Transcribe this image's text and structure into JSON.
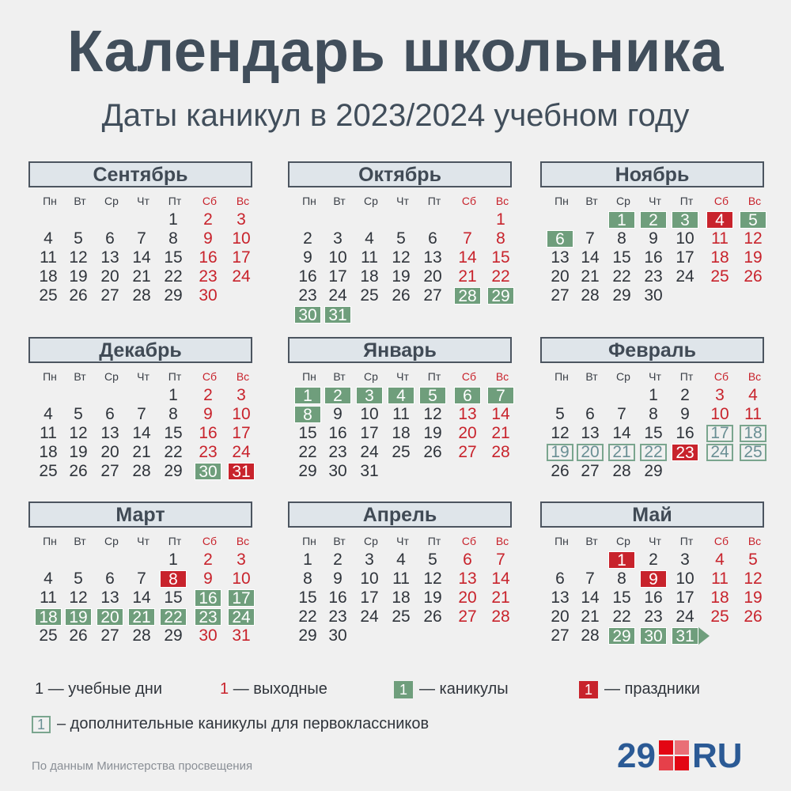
{
  "title": "Календарь школьника",
  "subtitle": "Даты каникул в 2023/2024 учебном году",
  "weekdays": [
    "Пн",
    "Вт",
    "Ср",
    "Чт",
    "Пт",
    "Сб",
    "Вс"
  ],
  "months": [
    {
      "name": "Сентябрь",
      "start": 4,
      "days": 30,
      "vac": [],
      "hol": [],
      "first": []
    },
    {
      "name": "Октябрь",
      "start": 6,
      "days": 31,
      "vac": [
        28,
        29,
        30,
        31
      ],
      "hol": [],
      "first": []
    },
    {
      "name": "Ноябрь",
      "start": 2,
      "days": 30,
      "vac": [
        1,
        2,
        3,
        5,
        6
      ],
      "hol": [
        4
      ],
      "first": []
    },
    {
      "name": "Декабрь",
      "start": 4,
      "days": 31,
      "vac": [
        30
      ],
      "hol": [
        31
      ],
      "first": []
    },
    {
      "name": "Январь",
      "start": 0,
      "days": 31,
      "vac": [
        1,
        2,
        3,
        4,
        5,
        6,
        7,
        8
      ],
      "hol": [],
      "first": []
    },
    {
      "name": "Февраль",
      "start": 3,
      "days": 29,
      "vac": [],
      "hol": [
        23
      ],
      "first": [
        17,
        18,
        19,
        20,
        21,
        22,
        24,
        25
      ]
    },
    {
      "name": "Март",
      "start": 4,
      "days": 31,
      "vac": [
        16,
        17,
        18,
        19,
        20,
        21,
        22,
        23,
        24
      ],
      "hol": [
        8
      ],
      "first": []
    },
    {
      "name": "Апрель",
      "start": 0,
      "days": 30,
      "vac": [],
      "hol": [],
      "first": []
    },
    {
      "name": "Май",
      "start": 2,
      "days": 31,
      "vac": [
        29,
        30,
        31
      ],
      "hol": [
        1,
        9
      ],
      "first": []
    }
  ],
  "legend": {
    "num": "1",
    "study_days": "— учебные дни",
    "days_off": "— выходные",
    "holidays_vac": "— каникулы",
    "public_holidays": "— праздники",
    "first_graders": "– дополнительные каникулы для первоклассников"
  },
  "source": "По данным Министерства просвещения",
  "logo": {
    "left": "29",
    "right": "RU"
  },
  "colors": {
    "vacation": "#6f9e7c",
    "holiday": "#c8232c",
    "weekend": "#c8232c",
    "first_grade_border": "#7aa58e",
    "title": "#414e5b",
    "logo_blue": "#2b5a95",
    "logo_red": "#e30613"
  }
}
